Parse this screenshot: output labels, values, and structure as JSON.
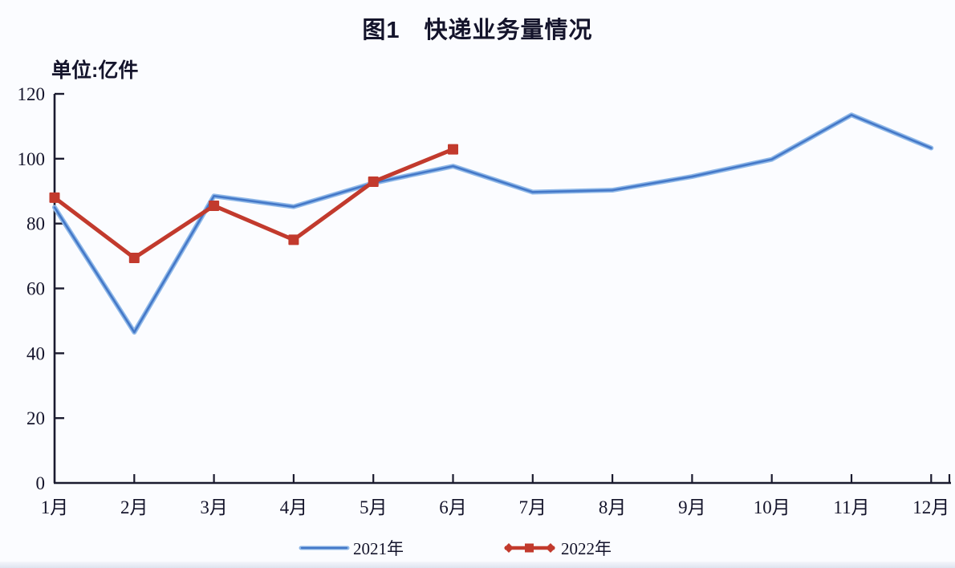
{
  "header": {
    "title": "图1　快递业务量情况",
    "unit_label": "单位:亿件"
  },
  "colors": {
    "background": "#FBFCFF",
    "axis": "#1B1B2F",
    "text": "#14142B",
    "series_2021_halo": "#8FB8E8",
    "series_2021": "#4478C8",
    "series_2022": "#C23A2D"
  },
  "legend": {
    "items": [
      {
        "label": "2021年",
        "series": "2021",
        "marker": "line"
      },
      {
        "label": "2022年",
        "series": "2022",
        "marker": "line-with-square"
      }
    ]
  },
  "chart_data": {
    "type": "line",
    "title": "图1　快递业务量情况",
    "unit": "单位:亿件",
    "categories": [
      "1月",
      "2月",
      "3月",
      "4月",
      "5月",
      "6月",
      "7月",
      "8月",
      "9月",
      "10月",
      "11月",
      "12月"
    ],
    "series": [
      {
        "name": "2021年",
        "color": "#4478C8",
        "marker": "none",
        "values": [
          85,
          46.5,
          88.5,
          85.2,
          92.5,
          97.7,
          89.7,
          90.3,
          94.5,
          99.8,
          113.5,
          103.3
        ]
      },
      {
        "name": "2022年",
        "color": "#C23A2D",
        "marker": "square",
        "values": [
          88,
          69.4,
          85.5,
          75,
          92.9,
          102.9
        ]
      }
    ],
    "ylim": [
      0,
      120
    ],
    "yticks": [
      0,
      20,
      40,
      60,
      80,
      100,
      120
    ],
    "xlabel": "",
    "ylabel": "单位:亿件",
    "grid": false,
    "legend_position": "bottom"
  }
}
